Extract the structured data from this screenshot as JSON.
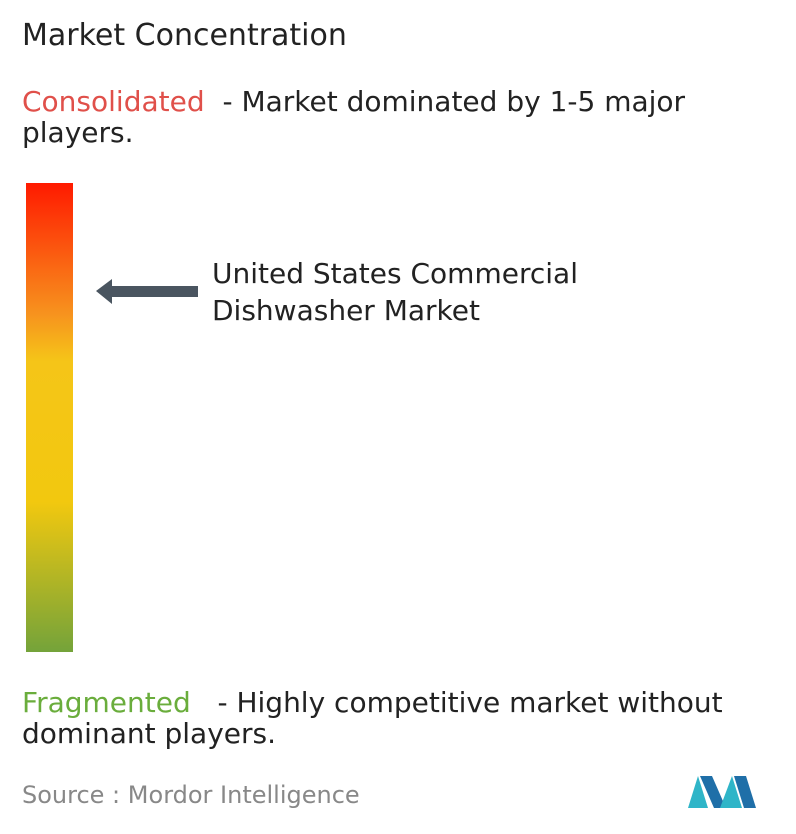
{
  "title": "Market Concentration",
  "consolidated": {
    "label": "Consolidated",
    "description": "- Market dominated by 1-5 major players."
  },
  "market": {
    "label": "United States Commercial Dishwasher Market"
  },
  "fragmented": {
    "label": "Fragmented",
    "description": "- Highly competitive market without dominant players."
  },
  "source": {
    "label": "Source :",
    "value": "Mordor Intelligence"
  }
}
